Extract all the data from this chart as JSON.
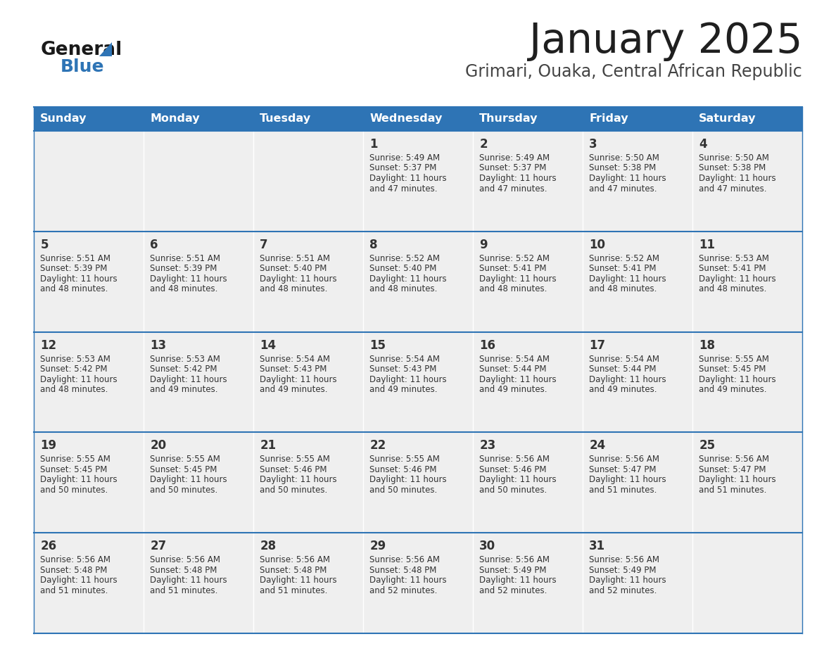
{
  "title": "January 2025",
  "subtitle": "Grimari, Ouaka, Central African Republic",
  "header_bg_color": "#2E74B5",
  "header_text_color": "#FFFFFF",
  "cell_bg_color": "#EFEFEF",
  "day_number_color": "#333333",
  "text_color": "#333333",
  "border_color": "#2E74B5",
  "days_of_week": [
    "Sunday",
    "Monday",
    "Tuesday",
    "Wednesday",
    "Thursday",
    "Friday",
    "Saturday"
  ],
  "title_color": "#1F1F1F",
  "subtitle_color": "#444444",
  "logo_general_color": "#1A1A1A",
  "logo_blue_color": "#2E74B5",
  "calendar_data": [
    [
      {
        "day": "",
        "sunrise": "",
        "sunset": "",
        "daylight": ""
      },
      {
        "day": "",
        "sunrise": "",
        "sunset": "",
        "daylight": ""
      },
      {
        "day": "",
        "sunrise": "",
        "sunset": "",
        "daylight": ""
      },
      {
        "day": "1",
        "sunrise": "5:49 AM",
        "sunset": "5:37 PM",
        "daylight_l1": "11 hours",
        "daylight_l2": "and 47 minutes."
      },
      {
        "day": "2",
        "sunrise": "5:49 AM",
        "sunset": "5:37 PM",
        "daylight_l1": "11 hours",
        "daylight_l2": "and 47 minutes."
      },
      {
        "day": "3",
        "sunrise": "5:50 AM",
        "sunset": "5:38 PM",
        "daylight_l1": "11 hours",
        "daylight_l2": "and 47 minutes."
      },
      {
        "day": "4",
        "sunrise": "5:50 AM",
        "sunset": "5:38 PM",
        "daylight_l1": "11 hours",
        "daylight_l2": "and 47 minutes."
      }
    ],
    [
      {
        "day": "5",
        "sunrise": "5:51 AM",
        "sunset": "5:39 PM",
        "daylight_l1": "11 hours",
        "daylight_l2": "and 48 minutes."
      },
      {
        "day": "6",
        "sunrise": "5:51 AM",
        "sunset": "5:39 PM",
        "daylight_l1": "11 hours",
        "daylight_l2": "and 48 minutes."
      },
      {
        "day": "7",
        "sunrise": "5:51 AM",
        "sunset": "5:40 PM",
        "daylight_l1": "11 hours",
        "daylight_l2": "and 48 minutes."
      },
      {
        "day": "8",
        "sunrise": "5:52 AM",
        "sunset": "5:40 PM",
        "daylight_l1": "11 hours",
        "daylight_l2": "and 48 minutes."
      },
      {
        "day": "9",
        "sunrise": "5:52 AM",
        "sunset": "5:41 PM",
        "daylight_l1": "11 hours",
        "daylight_l2": "and 48 minutes."
      },
      {
        "day": "10",
        "sunrise": "5:52 AM",
        "sunset": "5:41 PM",
        "daylight_l1": "11 hours",
        "daylight_l2": "and 48 minutes."
      },
      {
        "day": "11",
        "sunrise": "5:53 AM",
        "sunset": "5:41 PM",
        "daylight_l1": "11 hours",
        "daylight_l2": "and 48 minutes."
      }
    ],
    [
      {
        "day": "12",
        "sunrise": "5:53 AM",
        "sunset": "5:42 PM",
        "daylight_l1": "11 hours",
        "daylight_l2": "and 48 minutes."
      },
      {
        "day": "13",
        "sunrise": "5:53 AM",
        "sunset": "5:42 PM",
        "daylight_l1": "11 hours",
        "daylight_l2": "and 49 minutes."
      },
      {
        "day": "14",
        "sunrise": "5:54 AM",
        "sunset": "5:43 PM",
        "daylight_l1": "11 hours",
        "daylight_l2": "and 49 minutes."
      },
      {
        "day": "15",
        "sunrise": "5:54 AM",
        "sunset": "5:43 PM",
        "daylight_l1": "11 hours",
        "daylight_l2": "and 49 minutes."
      },
      {
        "day": "16",
        "sunrise": "5:54 AM",
        "sunset": "5:44 PM",
        "daylight_l1": "11 hours",
        "daylight_l2": "and 49 minutes."
      },
      {
        "day": "17",
        "sunrise": "5:54 AM",
        "sunset": "5:44 PM",
        "daylight_l1": "11 hours",
        "daylight_l2": "and 49 minutes."
      },
      {
        "day": "18",
        "sunrise": "5:55 AM",
        "sunset": "5:45 PM",
        "daylight_l1": "11 hours",
        "daylight_l2": "and 49 minutes."
      }
    ],
    [
      {
        "day": "19",
        "sunrise": "5:55 AM",
        "sunset": "5:45 PM",
        "daylight_l1": "11 hours",
        "daylight_l2": "and 50 minutes."
      },
      {
        "day": "20",
        "sunrise": "5:55 AM",
        "sunset": "5:45 PM",
        "daylight_l1": "11 hours",
        "daylight_l2": "and 50 minutes."
      },
      {
        "day": "21",
        "sunrise": "5:55 AM",
        "sunset": "5:46 PM",
        "daylight_l1": "11 hours",
        "daylight_l2": "and 50 minutes."
      },
      {
        "day": "22",
        "sunrise": "5:55 AM",
        "sunset": "5:46 PM",
        "daylight_l1": "11 hours",
        "daylight_l2": "and 50 minutes."
      },
      {
        "day": "23",
        "sunrise": "5:56 AM",
        "sunset": "5:46 PM",
        "daylight_l1": "11 hours",
        "daylight_l2": "and 50 minutes."
      },
      {
        "day": "24",
        "sunrise": "5:56 AM",
        "sunset": "5:47 PM",
        "daylight_l1": "11 hours",
        "daylight_l2": "and 51 minutes."
      },
      {
        "day": "25",
        "sunrise": "5:56 AM",
        "sunset": "5:47 PM",
        "daylight_l1": "11 hours",
        "daylight_l2": "and 51 minutes."
      }
    ],
    [
      {
        "day": "26",
        "sunrise": "5:56 AM",
        "sunset": "5:48 PM",
        "daylight_l1": "11 hours",
        "daylight_l2": "and 51 minutes."
      },
      {
        "day": "27",
        "sunrise": "5:56 AM",
        "sunset": "5:48 PM",
        "daylight_l1": "11 hours",
        "daylight_l2": "and 51 minutes."
      },
      {
        "day": "28",
        "sunrise": "5:56 AM",
        "sunset": "5:48 PM",
        "daylight_l1": "11 hours",
        "daylight_l2": "and 51 minutes."
      },
      {
        "day": "29",
        "sunrise": "5:56 AM",
        "sunset": "5:48 PM",
        "daylight_l1": "11 hours",
        "daylight_l2": "and 52 minutes."
      },
      {
        "day": "30",
        "sunrise": "5:56 AM",
        "sunset": "5:49 PM",
        "daylight_l1": "11 hours",
        "daylight_l2": "and 52 minutes."
      },
      {
        "day": "31",
        "sunrise": "5:56 AM",
        "sunset": "5:49 PM",
        "daylight_l1": "11 hours",
        "daylight_l2": "and 52 minutes."
      },
      {
        "day": "",
        "sunrise": "",
        "sunset": "",
        "daylight_l1": "",
        "daylight_l2": ""
      }
    ]
  ]
}
